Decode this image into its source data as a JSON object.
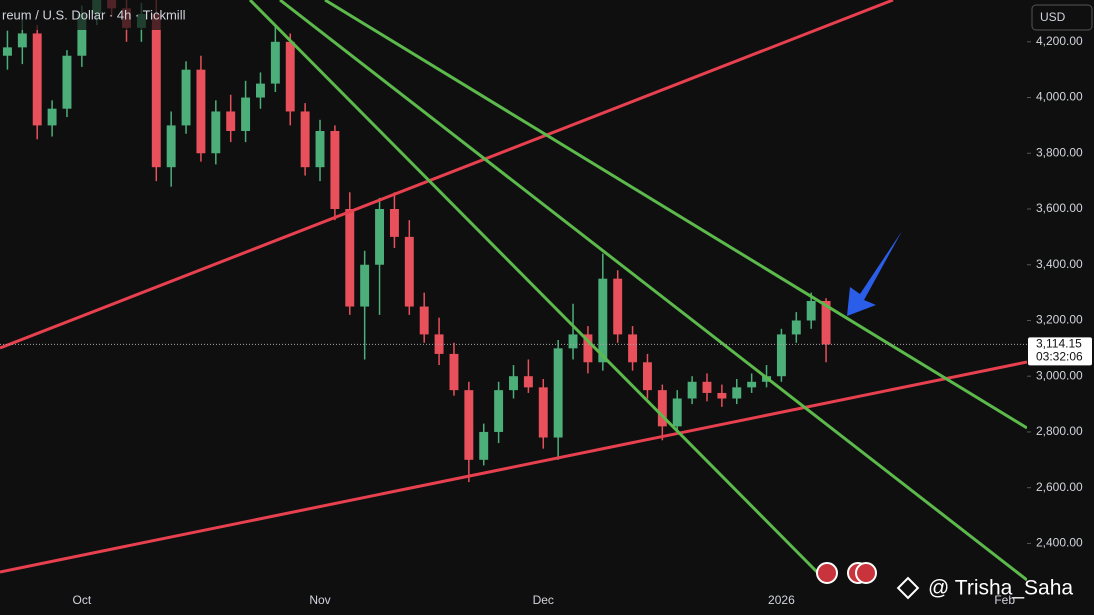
{
  "chart_data": {
    "type": "candlestick",
    "title": "reum / U.S. Dollar · 4h · Tickmill",
    "currency": "USD",
    "categories": [
      null,
      null,
      null,
      null,
      null,
      "Oct",
      null,
      null,
      null,
      null,
      null,
      null,
      null,
      null,
      null,
      null,
      null,
      null,
      null,
      null,
      null,
      "Nov",
      null,
      null,
      null,
      null,
      null,
      null,
      null,
      null,
      null,
      null,
      null,
      null,
      null,
      null,
      "Dec",
      null,
      null,
      null,
      null,
      null,
      null,
      null,
      null,
      null,
      null,
      null,
      null,
      null,
      null,
      null,
      "2026",
      null,
      null,
      null,
      null,
      null,
      null,
      null,
      null,
      null,
      null,
      null,
      null,
      null,
      null,
      "Feb",
      null
    ],
    "open": [
      4150,
      4180,
      4230,
      3900,
      3960,
      4150,
      4300,
      4350,
      4320,
      4250,
      4300,
      3750,
      3900,
      4100,
      3800,
      3950,
      3880,
      4000,
      4050,
      4200,
      3950,
      3750,
      3880,
      3600,
      3250,
      3400,
      3600,
      3500,
      3250,
      3150,
      3080,
      2950,
      2700,
      2800,
      2950,
      3000,
      2960,
      2780,
      3100,
      3150,
      3050,
      3350,
      3150,
      3050,
      2950,
      2820,
      2920,
      2980,
      2940,
      2920,
      2960,
      2980,
      3000,
      3150,
      3200,
      3270,
      null,
      null,
      null,
      null,
      null,
      null,
      null,
      null,
      null,
      null,
      null,
      null,
      null
    ],
    "high": [
      4240,
      4280,
      4260,
      3990,
      4170,
      4330,
      4380,
      4390,
      4350,
      4340,
      4350,
      3950,
      4130,
      4150,
      3990,
      4010,
      4060,
      4090,
      4260,
      4230,
      3980,
      3920,
      3900,
      3660,
      3450,
      3640,
      3660,
      3560,
      3300,
      3210,
      3120,
      2980,
      2830,
      2980,
      3040,
      3060,
      2990,
      3130,
      3260,
      3180,
      3440,
      3380,
      3180,
      3080,
      2970,
      2950,
      3000,
      3010,
      2970,
      2990,
      3010,
      3040,
      3170,
      3230,
      3300,
      3280,
      null,
      null,
      null,
      null,
      null,
      null,
      null,
      null,
      null,
      null,
      null,
      null,
      null
    ],
    "low": [
      4100,
      4120,
      3850,
      3860,
      3930,
      4110,
      4260,
      4290,
      4200,
      4200,
      3700,
      3680,
      3870,
      3770,
      3760,
      3840,
      3840,
      3960,
      4020,
      3900,
      3720,
      3700,
      3560,
      3220,
      3060,
      3220,
      3460,
      3220,
      3120,
      3040,
      2930,
      2620,
      2680,
      2760,
      2920,
      2940,
      2740,
      2700,
      3060,
      3010,
      3020,
      3120,
      3020,
      2920,
      2770,
      2800,
      2900,
      2910,
      2890,
      2900,
      2940,
      2960,
      2980,
      3120,
      3170,
      3050,
      null,
      null,
      null,
      null,
      null,
      null,
      null,
      null,
      null,
      null,
      null,
      null,
      null
    ],
    "close": [
      4180,
      4230,
      3900,
      3960,
      4150,
      4300,
      4350,
      4320,
      4250,
      4300,
      3750,
      3900,
      4100,
      3800,
      3950,
      3880,
      4000,
      4050,
      4200,
      3950,
      3750,
      3880,
      3600,
      3250,
      3400,
      3600,
      3500,
      3250,
      3150,
      3080,
      2950,
      2700,
      2800,
      2950,
      3000,
      2960,
      2780,
      3100,
      3150,
      3050,
      3350,
      3150,
      3050,
      2950,
      2820,
      2920,
      2980,
      2940,
      2920,
      2960,
      2980,
      3000,
      3150,
      3200,
      3270,
      3114.15,
      null,
      null,
      null,
      null,
      null,
      null,
      null,
      null,
      null,
      null,
      null,
      null,
      null
    ],
    "up_color": "#4caf7a",
    "down_color": "#e8505b",
    "ylim": [
      2240,
      4350
    ],
    "yticks": [
      {
        "value": 4200,
        "label": "4,200.00"
      },
      {
        "value": 4000,
        "label": "4,000.00"
      },
      {
        "value": 3800,
        "label": "3,800.00"
      },
      {
        "value": 3600,
        "label": "3,600.00"
      },
      {
        "value": 3400,
        "label": "3,400.00"
      },
      {
        "value": 3200,
        "label": "3,200.00"
      },
      {
        "value": 3000,
        "label": "3,000.00"
      },
      {
        "value": 2800,
        "label": "2,800.00"
      },
      {
        "value": 2600,
        "label": "2,600.00"
      },
      {
        "value": 2400,
        "label": "2,400.00"
      }
    ],
    "last_price": {
      "value": 3114.15,
      "label": "3,114.15"
    },
    "countdown": "03:32:06",
    "watermark": "@ Trisha_Saha"
  }
}
